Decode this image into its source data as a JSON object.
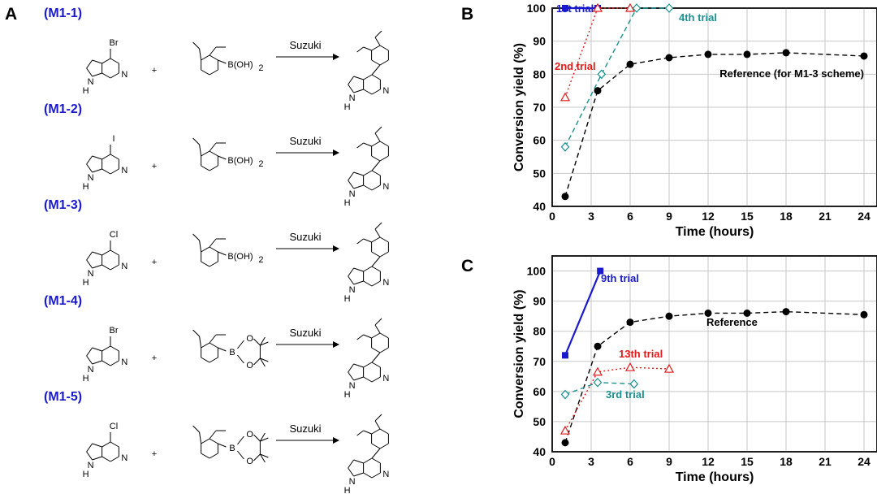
{
  "figure": {
    "panel_labels": [
      "A",
      "B",
      "C"
    ]
  },
  "scheme": {
    "reaction_label": "Suzuki",
    "plus": "+",
    "boronic_acid": "B(OH)",
    "boronic_sub": "2",
    "boron_pin": "B",
    "oxygen": "O",
    "nh": "N",
    "h": "H",
    "ring_n": "N",
    "rows": [
      {
        "id": "M1-1",
        "label": "(M1-1)",
        "halogen": "Br",
        "boron": "acid"
      },
      {
        "id": "M1-2",
        "label": "(M1-2)",
        "halogen": "I",
        "boron": "acid"
      },
      {
        "id": "M1-3",
        "label": "(M1-3)",
        "halogen": "Cl",
        "boron": "acid"
      },
      {
        "id": "M1-4",
        "label": "(M1-4)",
        "halogen": "Br",
        "boron": "pin"
      },
      {
        "id": "M1-5",
        "label": "(M1-5)",
        "halogen": "Cl",
        "boron": "pin"
      }
    ]
  },
  "chart_data": [
    {
      "panel": "B",
      "type": "line",
      "xlabel": "Time (hours)",
      "ylabel": "Conversion yield (%)",
      "xlim": [
        0,
        25
      ],
      "ylim": [
        40,
        100
      ],
      "xticks": [
        0,
        3,
        6,
        9,
        12,
        15,
        18,
        21,
        24
      ],
      "yticks": [
        40,
        50,
        60,
        70,
        80,
        90,
        100
      ],
      "grid": true,
      "series": [
        {
          "name": "Reference (for M1-3 scheme)",
          "color": "#000000",
          "marker": "circle",
          "style": "dashed",
          "x": [
            1,
            3.5,
            6,
            9,
            12,
            15,
            18,
            24
          ],
          "y": [
            43,
            75,
            83,
            85,
            86,
            86,
            86.5,
            85.5
          ]
        },
        {
          "name": "1st trial",
          "color": "#1a1acc",
          "marker": "square",
          "style": "solid",
          "x": [
            1,
            3.5
          ],
          "y": [
            100,
            100
          ]
        },
        {
          "name": "2nd trial",
          "color": "#e31a1c",
          "marker": "triangle",
          "style": "dotted",
          "x": [
            1,
            3.5,
            6
          ],
          "y": [
            73,
            100,
            100
          ]
        },
        {
          "name": "4th trial",
          "color": "#1a9090",
          "marker": "diamond",
          "style": "dashed",
          "x": [
            1,
            3.8,
            6.5,
            9
          ],
          "y": [
            58,
            80,
            100,
            100
          ]
        }
      ]
    },
    {
      "panel": "C",
      "type": "line",
      "xlabel": "Time (hours)",
      "ylabel": "Conversion yield (%)",
      "xlim": [
        0,
        25
      ],
      "ylim": [
        40,
        105
      ],
      "xticks": [
        0,
        3,
        6,
        9,
        12,
        15,
        18,
        21,
        24
      ],
      "yticks": [
        40,
        50,
        60,
        70,
        80,
        90,
        100
      ],
      "grid": true,
      "series": [
        {
          "name": "Reference",
          "color": "#000000",
          "marker": "circle",
          "style": "dashed",
          "x": [
            1,
            3.5,
            6,
            9,
            12,
            15,
            18,
            24
          ],
          "y": [
            43,
            75,
            83,
            85,
            86,
            86,
            86.5,
            85.5
          ]
        },
        {
          "name": "9th trial",
          "color": "#1a1acc",
          "marker": "square",
          "style": "solid",
          "x": [
            1,
            3.7
          ],
          "y": [
            72,
            100
          ]
        },
        {
          "name": "13th trial",
          "color": "#e31a1c",
          "marker": "triangle",
          "style": "dotted",
          "x": [
            1,
            3.5,
            6,
            9
          ],
          "y": [
            47,
            66.5,
            68,
            67.5
          ]
        },
        {
          "name": "3rd trial",
          "color": "#1a9090",
          "marker": "diamond",
          "style": "dashed",
          "x": [
            1,
            3.5,
            6.3
          ],
          "y": [
            59,
            63,
            62.5
          ]
        }
      ]
    }
  ]
}
